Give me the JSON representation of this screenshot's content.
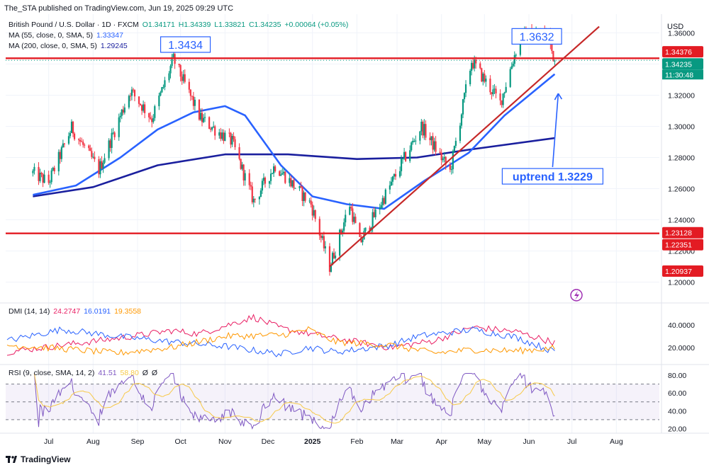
{
  "header": {
    "published": "The_STA published on TradingView.com, Jun 19, 2025 09:29 UTC",
    "symbol": "British Pound / U.S. Dollar · 1D · FXCM",
    "ohlc": {
      "o": "O1.34171",
      "h": "H1.34339",
      "l": "L1.33821",
      "c": "C1.34235",
      "chg": "+0.00064 (+0.05%)"
    },
    "ma55": {
      "label": "MA (55, close, 0, SMA, 5)",
      "value": "1.33347"
    },
    "ma200": {
      "label": "MA (200, close, 0, SMA, 5)",
      "value": "1.29245"
    },
    "currency": "USD"
  },
  "footer": {
    "brand": "TradingView"
  },
  "colors": {
    "up": "#089981",
    "down": "#f23645",
    "ma55": "#2962ff",
    "ma200": "#1a1f9e",
    "level": "#e31b23",
    "trend": "#c62828",
    "annot": "#2962ff",
    "rsi": "#7e57c2",
    "rsi_ma": "#f7c948",
    "plus_di": "#2962ff",
    "minus_di": "#e91e63",
    "adx": "#ff9800"
  },
  "chart_data": [
    {
      "type": "candlestick",
      "title": "British Pound / U.S. Dollar",
      "x_tick_labels": [
        "Jul",
        "Aug",
        "Sep",
        "Oct",
        "Nov",
        "Dec",
        "2025",
        "Feb",
        "Mar",
        "Apr",
        "May",
        "Jun",
        "Jul",
        "Aug"
      ],
      "y_ticks": [
        "1.36000",
        "1.34000",
        "1.32000",
        "1.30000",
        "1.28000",
        "1.26000",
        "1.24000",
        "1.22000",
        "1.20000"
      ],
      "ylim": [
        1.188,
        1.372
      ],
      "close_path": [
        {
          "date": "2024-06-20",
          "close": 1.27
        },
        {
          "date": "2024-07-01",
          "close": 1.264
        },
        {
          "date": "2024-07-17",
          "close": 1.299
        },
        {
          "date": "2024-08-05",
          "close": 1.272
        },
        {
          "date": "2024-08-27",
          "close": 1.323
        },
        {
          "date": "2024-09-11",
          "close": 1.305
        },
        {
          "date": "2024-09-26",
          "close": 1.343
        },
        {
          "date": "2024-10-15",
          "close": 1.305
        },
        {
          "date": "2024-11-06",
          "close": 1.29
        },
        {
          "date": "2024-11-21",
          "close": 1.252
        },
        {
          "date": "2024-12-06",
          "close": 1.275
        },
        {
          "date": "2024-12-31",
          "close": 1.25
        },
        {
          "date": "2025-01-13",
          "close": 1.21
        },
        {
          "date": "2025-01-27",
          "close": 1.25
        },
        {
          "date": "2025-02-03",
          "close": 1.225
        },
        {
          "date": "2025-02-26",
          "close": 1.265
        },
        {
          "date": "2025-03-18",
          "close": 1.3
        },
        {
          "date": "2025-04-07",
          "close": 1.271
        },
        {
          "date": "2025-04-22",
          "close": 1.342
        },
        {
          "date": "2025-05-12",
          "close": 1.315
        },
        {
          "date": "2025-05-26",
          "close": 1.358
        },
        {
          "date": "2025-06-13",
          "close": 1.36
        },
        {
          "date": "2025-06-19",
          "close": 1.34235
        }
      ],
      "series": [
        {
          "name": "MA (55, close, 0, SMA, 5)",
          "points": [
            {
              "date": "2024-06-20",
              "value": 1.256
            },
            {
              "date": "2024-07-20",
              "value": 1.262
            },
            {
              "date": "2024-08-20",
              "value": 1.28
            },
            {
              "date": "2024-09-15",
              "value": 1.298
            },
            {
              "date": "2024-10-10",
              "value": 1.309
            },
            {
              "date": "2024-11-01",
              "value": 1.313
            },
            {
              "date": "2024-11-15",
              "value": 1.307
            },
            {
              "date": "2024-12-10",
              "value": 1.275
            },
            {
              "date": "2025-01-01",
              "value": 1.255
            },
            {
              "date": "2025-01-25",
              "value": 1.25
            },
            {
              "date": "2025-02-20",
              "value": 1.247
            },
            {
              "date": "2025-03-20",
              "value": 1.265
            },
            {
              "date": "2025-04-20",
              "value": 1.283
            },
            {
              "date": "2025-05-15",
              "value": 1.307
            },
            {
              "date": "2025-06-19",
              "value": 1.33347
            }
          ]
        },
        {
          "name": "MA (200, close, 0, SMA, 5)",
          "points": [
            {
              "date": "2024-06-20",
              "value": 1.255
            },
            {
              "date": "2024-08-01",
              "value": 1.261
            },
            {
              "date": "2024-09-15",
              "value": 1.275
            },
            {
              "date": "2024-11-01",
              "value": 1.282
            },
            {
              "date": "2024-12-15",
              "value": 1.282
            },
            {
              "date": "2025-02-01",
              "value": 1.279
            },
            {
              "date": "2025-03-15",
              "value": 1.28
            },
            {
              "date": "2025-04-20",
              "value": 1.285
            },
            {
              "date": "2025-06-19",
              "value": 1.29245
            }
          ]
        }
      ],
      "horizontal_levels": [
        1.3437,
        1.2313
      ],
      "trendline": [
        {
          "date": "2025-01-13",
          "value": 1.21
        },
        {
          "date": "2025-07-20",
          "value": 1.364
        }
      ],
      "annotations": [
        {
          "text": "1.3434",
          "date": "2024-09-26",
          "value": 1.3434
        },
        {
          "text": "1.3632",
          "date": "2025-06-04",
          "value": 1.3632
        },
        {
          "text": "uptrend 1.3229",
          "date": "2025-06-19",
          "value": 1.3229
        }
      ],
      "price_labels": [
        {
          "text": "1.34376",
          "kind": "level"
        },
        {
          "text": "1.34235",
          "kind": "last",
          "sub": "11:30:48"
        },
        {
          "text": "1.23128",
          "kind": "level"
        },
        {
          "text": "1.22351",
          "kind": "level"
        },
        {
          "text": "1.20937",
          "kind": "level"
        }
      ]
    },
    {
      "type": "line",
      "title": "DMI (14, 14)",
      "legend_values": [
        "24.2747",
        "16.0191",
        "19.3558"
      ],
      "y_ticks": [
        "40.0000",
        "20.0000"
      ],
      "ylim": [
        8,
        52
      ],
      "series": [
        {
          "points": [
            [
              0,
              16
            ],
            [
              0.1,
              22
            ],
            [
              0.2,
              28
            ],
            [
              0.3,
              35
            ],
            [
              0.35,
              32
            ],
            [
              0.45,
              47
            ],
            [
              0.5,
              37
            ],
            [
              0.6,
              28
            ],
            [
              0.7,
              20
            ],
            [
              0.78,
              26
            ],
            [
              0.85,
              38
            ],
            [
              0.93,
              34
            ],
            [
              1,
              24.27
            ]
          ]
        },
        {
          "points": [
            [
              0,
              26
            ],
            [
              0.1,
              36
            ],
            [
              0.2,
              30
            ],
            [
              0.3,
              25
            ],
            [
              0.4,
              21
            ],
            [
              0.5,
              14
            ],
            [
              0.55,
              20
            ],
            [
              0.6,
              16
            ],
            [
              0.7,
              22
            ],
            [
              0.75,
              30
            ],
            [
              0.85,
              36
            ],
            [
              0.93,
              29
            ],
            [
              1,
              16.02
            ]
          ]
        },
        {
          "points": [
            [
              0,
              22
            ],
            [
              0.1,
              19
            ],
            [
              0.2,
              15
            ],
            [
              0.3,
              20
            ],
            [
              0.4,
              30
            ],
            [
              0.5,
              31
            ],
            [
              0.55,
              36
            ],
            [
              0.6,
              25
            ],
            [
              0.7,
              22
            ],
            [
              0.78,
              15
            ],
            [
              0.85,
              18
            ],
            [
              0.93,
              17
            ],
            [
              1,
              19.36
            ]
          ]
        }
      ]
    },
    {
      "type": "line",
      "title": "RSI (9, close, SMA, 14, 2)",
      "legend_values": [
        "41.51",
        "58.80",
        "Ø",
        "Ø"
      ],
      "y_ticks": [
        "80.00",
        "60.00",
        "40.00",
        "20.00"
      ],
      "ylim": [
        18,
        84
      ],
      "bands": [
        70,
        50,
        30
      ],
      "series": [
        {
          "name": "RSI",
          "last": 41.51
        },
        {
          "name": "RSI-based MA",
          "last": 58.8
        }
      ]
    }
  ]
}
